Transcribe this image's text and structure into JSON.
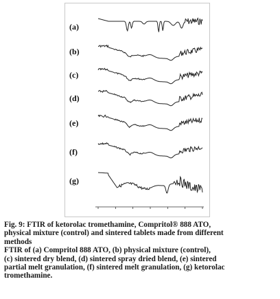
{
  "figure": {
    "trace_labels": [
      "(a)",
      "(b)",
      "(c)",
      "(d)",
      "(e)",
      "(f)",
      "(g)"
    ],
    "axis_tick_count": 7
  },
  "caption": {
    "line1": "Fig. 9: FTIR of ketorolac tromethamine, Compritol® 888 ATO,",
    "line2": "physical mixture (control) and sintered tablets made from different",
    "line3": "methods",
    "line4": "FTIR of (a) Compritol 888 ATO, (b) physical mixture (control),",
    "line5": "(c) sintered dry blend, (d) sintered spray dried blend, (e) sintered",
    "line6": "partial melt granulation, (f) sintered melt granulation, (g) ketorolac",
    "line7": "tromethamine."
  }
}
